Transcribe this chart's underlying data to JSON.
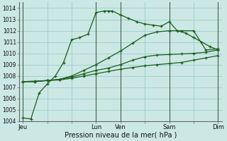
{
  "xlabel": "Pression niveau de la mer( hPa )",
  "bg_color": "#cce8e4",
  "grid_color": "#99cccc",
  "line_color": "#1a5c1a",
  "ylim": [
    1004,
    1014.5
  ],
  "yticks": [
    1004,
    1005,
    1006,
    1007,
    1008,
    1009,
    1010,
    1011,
    1012,
    1013,
    1014
  ],
  "xtick_labels": [
    "Jeu",
    "",
    "",
    "Lun",
    "Ven",
    "",
    "Sam",
    "",
    "Dim"
  ],
  "xtick_positions": [
    0,
    1,
    2,
    3,
    4,
    5,
    6,
    7,
    8
  ],
  "vlines": [
    0,
    3,
    4,
    6,
    8
  ],
  "series": [
    {
      "x": [
        0,
        0.33,
        0.67,
        1,
        1.33,
        1.67,
        2,
        2.33,
        2.67,
        3,
        3.33,
        3.5,
        3.67,
        4,
        4.33,
        4.67,
        5,
        5.33,
        5.67,
        6,
        6.33,
        6.67,
        7,
        7.33,
        7.67,
        8
      ],
      "y": [
        1004.3,
        1004.2,
        1006.5,
        1007.3,
        1008.0,
        1009.2,
        1011.2,
        1011.4,
        1011.7,
        1013.6,
        1013.75,
        1013.75,
        1013.75,
        1013.4,
        1013.1,
        1012.8,
        1012.6,
        1012.5,
        1012.4,
        1012.8,
        1012.0,
        1011.8,
        1011.4,
        1011.0,
        1010.6,
        1010.3
      ],
      "marker": "+"
    },
    {
      "x": [
        0,
        0.5,
        1,
        1.5,
        2,
        2.5,
        3,
        3.5,
        4,
        4.5,
        5,
        5.5,
        6,
        6.5,
        7,
        7.5,
        8
      ],
      "y": [
        1007.5,
        1007.5,
        1007.6,
        1007.7,
        1008.0,
        1008.5,
        1009.0,
        1009.6,
        1010.2,
        1010.9,
        1011.6,
        1011.9,
        1012.0,
        1012.0,
        1012.0,
        1010.3,
        1010.4
      ],
      "marker": "+"
    },
    {
      "x": [
        0,
        0.5,
        1,
        1.5,
        2,
        2.5,
        3,
        3.5,
        4,
        4.5,
        5,
        5.5,
        6,
        6.5,
        7,
        7.5,
        8
      ],
      "y": [
        1007.5,
        1007.5,
        1007.6,
        1007.7,
        1007.9,
        1008.2,
        1008.5,
        1008.7,
        1009.0,
        1009.4,
        1009.7,
        1009.85,
        1009.9,
        1009.95,
        1010.0,
        1010.1,
        1010.3
      ],
      "marker": "+"
    },
    {
      "x": [
        0,
        0.5,
        1,
        1.5,
        2,
        2.5,
        3,
        3.5,
        4,
        4.5,
        5,
        5.5,
        6,
        6.5,
        7,
        7.5,
        8
      ],
      "y": [
        1007.5,
        1007.55,
        1007.6,
        1007.65,
        1007.8,
        1008.0,
        1008.2,
        1008.4,
        1008.6,
        1008.75,
        1008.9,
        1009.0,
        1009.1,
        1009.2,
        1009.4,
        1009.6,
        1009.8
      ],
      "marker": "+"
    }
  ]
}
